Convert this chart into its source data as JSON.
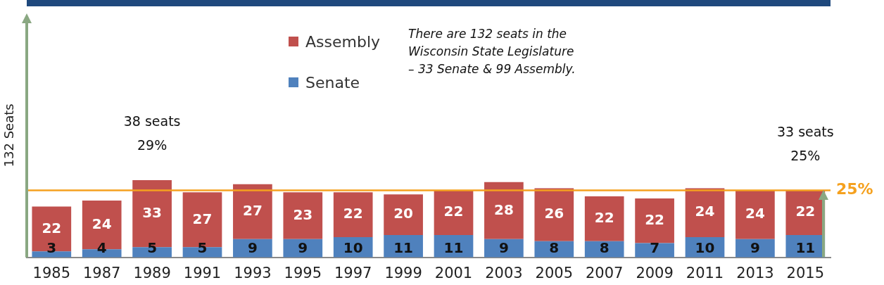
{
  "chart_data": {
    "type": "bar",
    "stacked": true,
    "ylabel": "132 Seats",
    "categories": [
      "1985",
      "1987",
      "1989",
      "1991",
      "1993",
      "1995",
      "1997",
      "1999",
      "2001",
      "2003",
      "2005",
      "2007",
      "2009",
      "2011",
      "2013",
      "2015"
    ],
    "series": [
      {
        "name": "Senate",
        "color": "#4f81bd",
        "values": [
          3,
          4,
          5,
          5,
          9,
          9,
          10,
          11,
          11,
          9,
          8,
          8,
          7,
          10,
          9,
          11
        ]
      },
      {
        "name": "Assembly",
        "color": "#c0504d",
        "values": [
          22,
          24,
          33,
          27,
          27,
          23,
          22,
          20,
          22,
          28,
          26,
          22,
          22,
          24,
          24,
          22
        ]
      }
    ],
    "data_labels": true,
    "legend": "top",
    "ref_lines": [
      {
        "axis": "y",
        "value": 33,
        "color": "#f5a11f"
      }
    ],
    "annotations": [
      "There are 132 seats in the\nWisconsin State Legislature\n– 33 Senate & 99 Assembly.",
      {
        "text": "38 seats\n29%",
        "x": "1989",
        "y": 38
      },
      {
        "text": "33 seats\n25%",
        "x": "2015",
        "y": 33
      },
      "25%"
    ]
  }
}
